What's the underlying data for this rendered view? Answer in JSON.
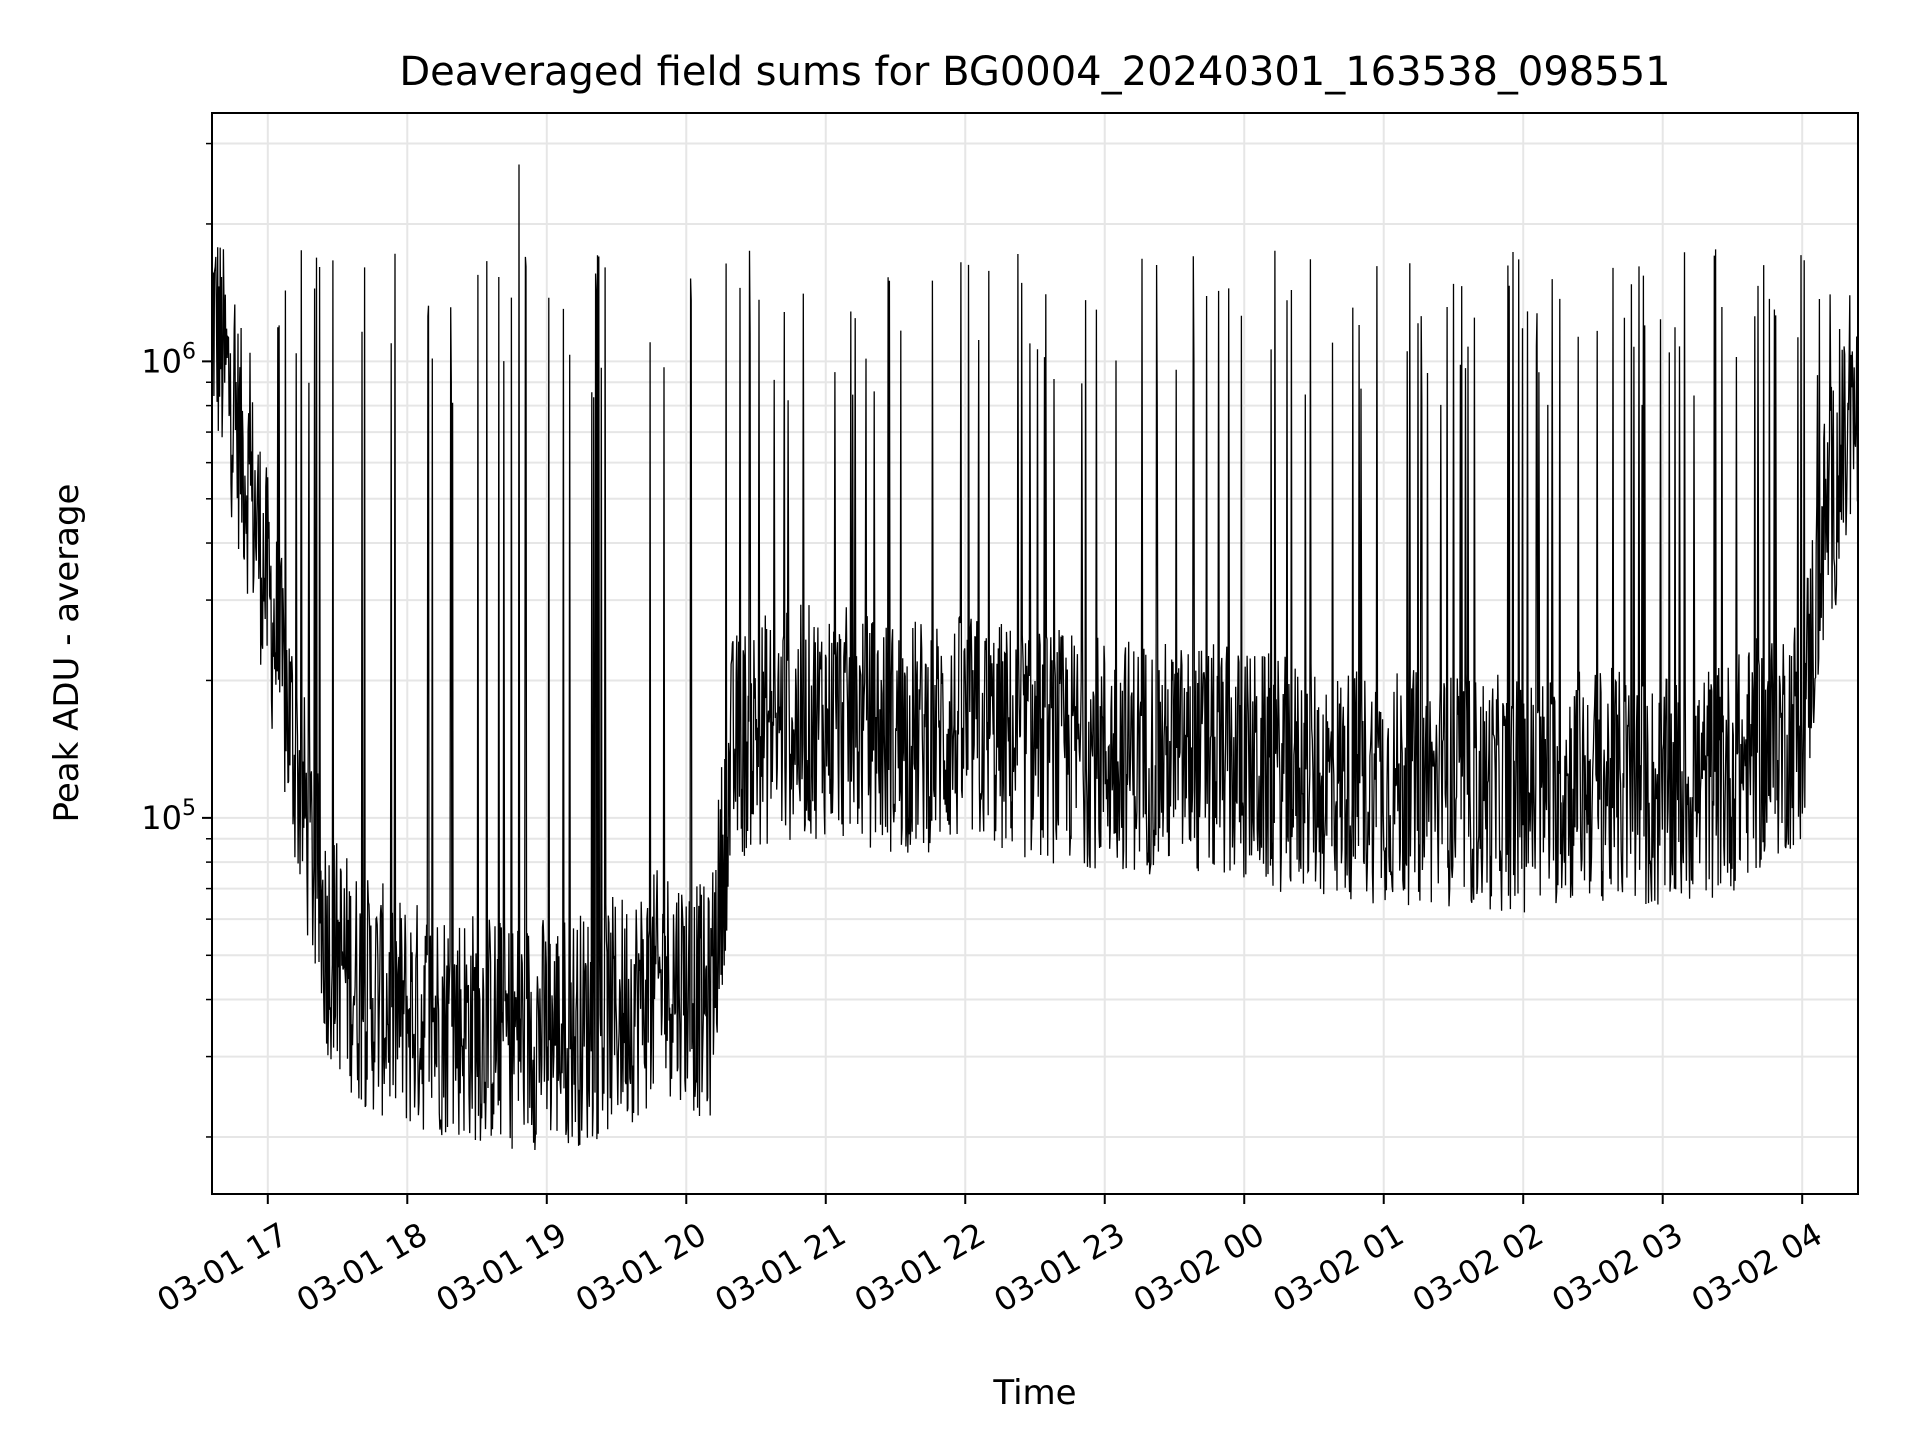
{
  "chart_data": {
    "type": "line",
    "title": "Deaveraged field sums for BG0004_20240301_163538_098551",
    "xlabel": "Time",
    "ylabel": "Peak ADU - average",
    "yscale": "log",
    "ylim": [
      15000,
      3500000
    ],
    "xlim": [
      "2024-03-01 16:36",
      "2024-03-02 04:24"
    ],
    "x_ticks": [
      "03-01 17",
      "03-01 18",
      "03-01 19",
      "03-01 20",
      "03-01 21",
      "03-01 22",
      "03-01 23",
      "03-02 00",
      "03-02 01",
      "03-02 02",
      "03-02 03",
      "03-02 04"
    ],
    "y_ticks": [
      {
        "base": "10",
        "exp": "5",
        "value": 100000
      },
      {
        "base": "10",
        "exp": "6",
        "value": 1000000
      }
    ],
    "grid": true,
    "legend": "none",
    "series": [
      {
        "color": "#000000",
        "x": [
          "2024-03-01 16:36",
          "2024-03-01 16:45",
          "2024-03-01 16:55",
          "2024-03-01 17:05",
          "2024-03-01 17:15",
          "2024-03-01 17:25",
          "2024-03-01 17:40",
          "2024-03-01 18:00",
          "2024-03-01 18:20",
          "2024-03-01 18:40",
          "2024-03-01 19:00",
          "2024-03-01 19:20",
          "2024-03-01 19:40",
          "2024-03-01 19:55",
          "2024-03-01 20:10",
          "2024-03-01 20:20",
          "2024-03-01 20:30",
          "2024-03-01 21:00",
          "2024-03-01 21:30",
          "2024-03-01 22:00",
          "2024-03-01 22:30",
          "2024-03-01 23:00",
          "2024-03-01 23:30",
          "2024-03-02 00:00",
          "2024-03-02 00:30",
          "2024-03-02 01:00",
          "2024-03-02 01:30",
          "2024-03-02 02:00",
          "2024-03-02 02:30",
          "2024-03-02 03:00",
          "2024-03-02 03:30",
          "2024-03-02 04:00",
          "2024-03-02 04:10",
          "2024-03-02 04:24"
        ],
        "baseline": [
          1300000,
          800000,
          450000,
          220000,
          110000,
          55000,
          42000,
          37000,
          36000,
          34000,
          34000,
          35000,
          40000,
          45000,
          38000,
          140000,
          155000,
          165000,
          150000,
          155000,
          145000,
          140000,
          135000,
          130000,
          120000,
          118000,
          115000,
          112000,
          120000,
          110000,
          125000,
          160000,
          450000,
          750000
        ],
        "spike_peak": 1600000,
        "max_value": 2700000,
        "max_at": "2024-03-01 18:48",
        "min_value": 18000
      }
    ]
  }
}
